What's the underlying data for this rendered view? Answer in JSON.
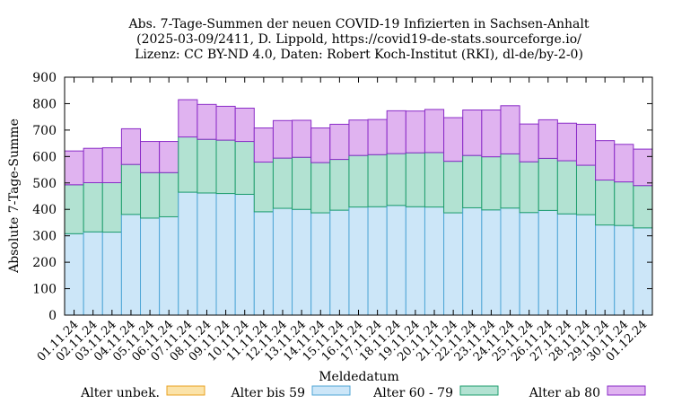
{
  "chart_data": {
    "type": "bar",
    "stacked": true,
    "title_lines": [
      "Abs. 7-Tage-Summen der neuen COVID-19 Infizierten in Sachsen-Anhalt",
      "(2025-03-09/2411, D. Lippold, https://covid19-de-stats.sourceforge.io/",
      "Lizenz: CC BY-ND 4.0, Daten: Robert Koch-Institut (RKI), dl-de/by-2-0)"
    ],
    "xlabel": "Meldedatum",
    "ylabel": "Absolute 7-Tage-Summe",
    "ylim": [
      0,
      900
    ],
    "yticks": [
      0,
      100,
      200,
      300,
      400,
      500,
      600,
      700,
      800,
      900
    ],
    "grid": false,
    "legend_position": "bottom",
    "categories": [
      "01.11.24",
      "02.11.24",
      "03.11.24",
      "04.11.24",
      "05.11.24",
      "06.11.24",
      "07.11.24",
      "08.11.24",
      "09.11.24",
      "10.11.24",
      "11.11.24",
      "12.11.24",
      "13.11.24",
      "14.11.24",
      "15.11.24",
      "16.11.24",
      "17.11.24",
      "18.11.24",
      "19.11.24",
      "20.11.24",
      "21.11.24",
      "22.11.24",
      "23.11.24",
      "24.11.24",
      "25.11.24",
      "26.11.24",
      "27.11.24",
      "28.11.24",
      "29.11.24",
      "30.11.24",
      "01.12.24"
    ],
    "series": [
      {
        "name": "Alter unbek.",
        "color": "#fbe3a9",
        "stroke": "#e8a020",
        "values": [
          0,
          0,
          0,
          0,
          0,
          0,
          0,
          0,
          0,
          0,
          0,
          0,
          0,
          0,
          0,
          0,
          0,
          0,
          0,
          0,
          0,
          0,
          0,
          0,
          0,
          0,
          0,
          0,
          0,
          0,
          0
        ]
      },
      {
        "name": "Alter bis 59",
        "color": "#cce6f8",
        "stroke": "#4fa6d6",
        "values": [
          308,
          315,
          314,
          381,
          367,
          372,
          465,
          462,
          460,
          457,
          391,
          404,
          400,
          387,
          397,
          409,
          410,
          415,
          410,
          409,
          387,
          406,
          398,
          405,
          388,
          396,
          383,
          380,
          341,
          339,
          330
        ]
      },
      {
        "name": "Alter 60 - 79",
        "color": "#b2e2d2",
        "stroke": "#1f9e6e",
        "values": [
          185,
          186,
          187,
          189,
          172,
          167,
          209,
          203,
          202,
          200,
          188,
          190,
          197,
          190,
          192,
          195,
          197,
          196,
          204,
          206,
          195,
          198,
          201,
          205,
          192,
          197,
          201,
          187,
          170,
          165,
          160
        ]
      },
      {
        "name": "Alter ab 80",
        "color": "#e0b3f0",
        "stroke": "#8a2bc7",
        "values": [
          128,
          130,
          132,
          135,
          118,
          118,
          141,
          132,
          128,
          126,
          129,
          142,
          140,
          131,
          133,
          134,
          133,
          162,
          158,
          163,
          165,
          172,
          177,
          182,
          143,
          146,
          142,
          155,
          149,
          142,
          138
        ]
      }
    ]
  }
}
